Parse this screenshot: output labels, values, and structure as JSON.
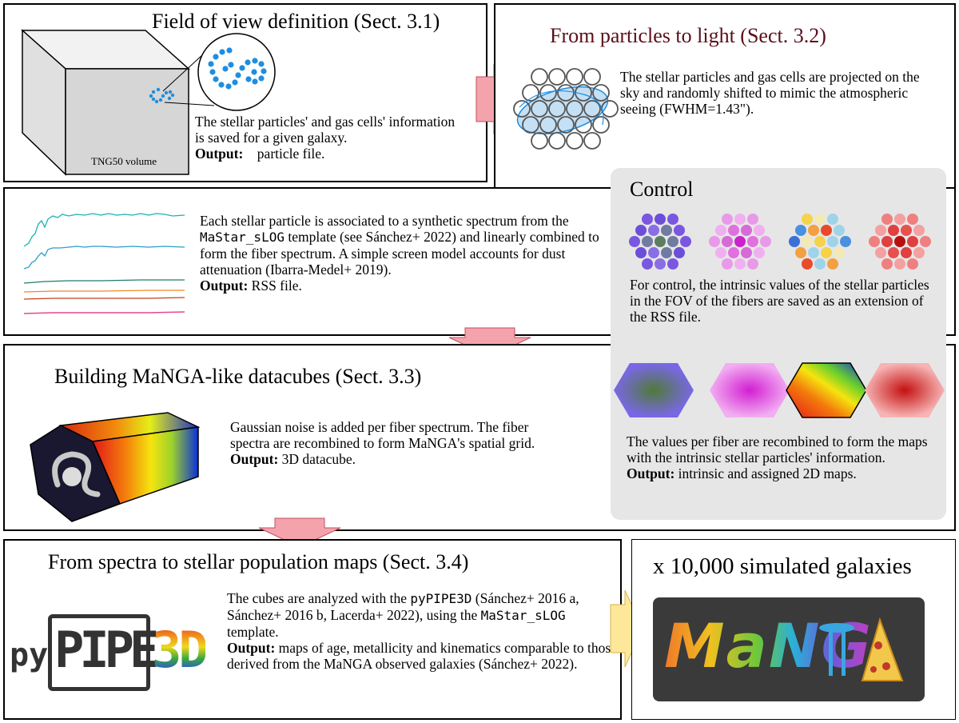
{
  "colors": {
    "title_red": "#5a0f1a",
    "arrow_pink": "#f4a3ad",
    "arrow_yellow": "#fde89a",
    "control_bg": "#e6e6e6",
    "particle_blue": "#1f8ee0"
  },
  "fov": {
    "title": "Field of view definition (Sect. 3.1)",
    "body": "The stellar particles' and gas cells' information is saved for a given galaxy.",
    "output_label": "Output:",
    "output_text": "particle file.",
    "cube_label": "TNG50 volume"
  },
  "light": {
    "title": "From particles to light (Sect. 3.2)",
    "body": "The stellar particles and gas cells are projected on the sky and randomly shifted to mimic the atmospheric seeing (FWHM=1.43\")."
  },
  "spectra": {
    "p1": "Each stellar particle is associated to a synthetic spectrum from the",
    "template": "MaStar_sLOG",
    "p2": "template (see Sánchez+ 2022) and linearly combined to form the fiber spectrum. A simple screen model accounts for dust attenuation (Ibarra-Medel+ 2019).",
    "output_label": "Output:",
    "output_text": "RSS file."
  },
  "control": {
    "title": "Control",
    "text1": "For control, the intrinsic values of the stellar particles in the FOV of the fibers are saved as an extension of the RSS file.",
    "text2": "The values per fiber are recombined to form the maps with the intrinsic stellar particles' information.",
    "output_label": "Output:",
    "output_text": "intrinsic and assigned 2D maps."
  },
  "datacube": {
    "title": "Building MaNGA-like datacubes (Sect. 3.3)",
    "body": "Gaussian noise is added per fiber spectrum. The fiber spectra are recombined to form MaNGA's spatial grid.",
    "output_label": "Output:",
    "output_text": "3D datacube."
  },
  "maps": {
    "title": "From spectra to stellar population maps (Sect. 3.4)",
    "p1": "The cubes are analyzed with the",
    "code": "pyPIPE3D",
    "p2": "(Sánchez+ 2016 a, Sánchez+ 2016 b, Lacerda+ 2022), using the",
    "template": "MaStar_sLOG",
    "p3": "template.",
    "output_label": "Output:",
    "output_text": "maps of age, metallicity and kinematics comparable to those derived from the MaNGA observed galaxies (Sánchez+ 2022).",
    "logo_py": "py",
    "logo_pipe": "PIPE",
    "logo_3d": "3D"
  },
  "galaxies": {
    "title": "x 10,000 simulated galaxies",
    "logo_text": "MaNG"
  }
}
